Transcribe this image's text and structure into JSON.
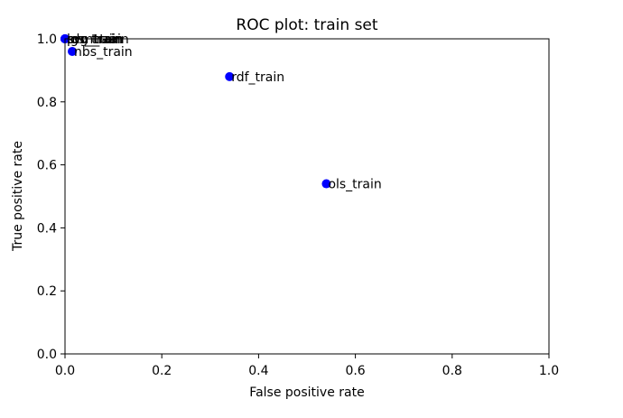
{
  "chart_data": {
    "type": "scatter",
    "title": "ROC plot: train set",
    "xlabel": "False positive rate",
    "ylabel": "True positive rate",
    "xlim": [
      0.0,
      1.0
    ],
    "ylim": [
      0.0,
      1.0
    ],
    "xticks": [
      "0.0",
      "0.2",
      "0.4",
      "0.6",
      "0.8",
      "1.0"
    ],
    "yticks": [
      "0.0",
      "0.2",
      "0.4",
      "0.6",
      "0.8",
      "1.0"
    ],
    "grid": false,
    "marker_color": "#0000ff",
    "points": [
      {
        "label": "ols_train",
        "x": 0.54,
        "y": 0.54
      },
      {
        "label": "rdf_train",
        "x": 0.34,
        "y": 0.88
      },
      {
        "label": "nbs_train",
        "x": 0.015,
        "y": 0.96
      },
      {
        "label": "lgs_train",
        "x": 0.0,
        "y": 1.0
      },
      {
        "label": "svm_train",
        "x": 0.0,
        "y": 1.0
      },
      {
        "label": "prc_train",
        "x": 0.0,
        "y": 1.0
      },
      {
        "label": "rdg_train",
        "x": 0.0,
        "y": 1.0
      }
    ]
  }
}
